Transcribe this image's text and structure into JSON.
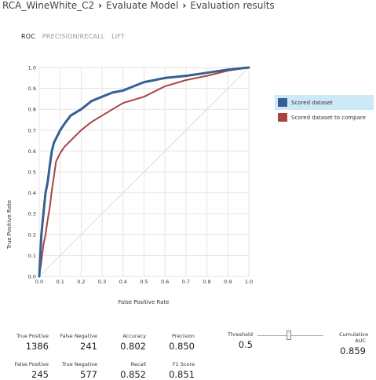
{
  "breadcrumb": {
    "items": [
      "RCA_WineWhite_C2",
      "Evaluate Model",
      "Evaluation results"
    ],
    "separator": "›"
  },
  "tabs": [
    {
      "label": "ROC",
      "active": true
    },
    {
      "label": "PRECISION/RECALL",
      "active": false
    },
    {
      "label": "LIFT",
      "active": false
    }
  ],
  "legend": [
    {
      "label": "Scored dataset",
      "color": "#376092",
      "selected": true
    },
    {
      "label": "Scored dataset to compare",
      "color": "#a94442",
      "selected": false
    }
  ],
  "metrics": {
    "true_positive": {
      "label": "True Positive",
      "value": "1386"
    },
    "false_negative": {
      "label": "False Negative",
      "value": "241"
    },
    "accuracy": {
      "label": "Accuracy",
      "value": "0.802"
    },
    "precision": {
      "label": "Precision",
      "value": "0.850"
    },
    "false_positive": {
      "label": "False Positive",
      "value": "245"
    },
    "true_negative": {
      "label": "True Negative",
      "value": "577"
    },
    "recall": {
      "label": "Recall",
      "value": "0.852"
    },
    "f1_score": {
      "label": "F1 Score",
      "value": "0.851"
    }
  },
  "threshold": {
    "label": "Threshold",
    "value": "0.5"
  },
  "cumulative_auc": {
    "label": "Cumulative AUC",
    "value": "0.859"
  },
  "chart_data": {
    "type": "line",
    "xlabel": "False Positive Rate",
    "ylabel": "True Positive Rate",
    "xlim": [
      0,
      1
    ],
    "ylim": [
      0,
      1
    ],
    "xticks": [
      "0.0",
      "0.1",
      "0.2",
      "0.3",
      "0.4",
      "0.5",
      "0.6",
      "0.7",
      "0.8",
      "0.9",
      "1.0"
    ],
    "yticks": [
      "0.0",
      "0.1",
      "0.2",
      "0.3",
      "0.4",
      "0.5",
      "0.6",
      "0.7",
      "0.8",
      "0.9",
      "1.0"
    ],
    "grid": true,
    "series": [
      {
        "name": "Scored dataset",
        "color": "#376092",
        "x": [
          0,
          0.005,
          0.01,
          0.02,
          0.03,
          0.04,
          0.05,
          0.06,
          0.07,
          0.08,
          0.1,
          0.12,
          0.15,
          0.2,
          0.25,
          0.3,
          0.35,
          0.4,
          0.45,
          0.5,
          0.55,
          0.6,
          0.7,
          0.8,
          0.9,
          1.0
        ],
        "y": [
          0,
          0.1,
          0.2,
          0.3,
          0.4,
          0.45,
          0.53,
          0.6,
          0.64,
          0.66,
          0.7,
          0.73,
          0.77,
          0.8,
          0.84,
          0.86,
          0.88,
          0.89,
          0.91,
          0.93,
          0.94,
          0.95,
          0.96,
          0.975,
          0.99,
          1.0
        ]
      },
      {
        "name": "Scored dataset to compare",
        "color": "#a94442",
        "x": [
          0,
          0.01,
          0.02,
          0.03,
          0.04,
          0.05,
          0.06,
          0.08,
          0.1,
          0.12,
          0.15,
          0.2,
          0.25,
          0.3,
          0.35,
          0.4,
          0.5,
          0.6,
          0.7,
          0.8,
          0.9,
          1.0
        ],
        "y": [
          0,
          0.07,
          0.15,
          0.2,
          0.27,
          0.33,
          0.41,
          0.55,
          0.59,
          0.62,
          0.65,
          0.7,
          0.74,
          0.77,
          0.8,
          0.83,
          0.86,
          0.91,
          0.94,
          0.96,
          0.985,
          1.0
        ]
      },
      {
        "name": "",
        "color": "#dddddd",
        "x": [
          0,
          1
        ],
        "y": [
          0,
          1
        ]
      }
    ]
  }
}
